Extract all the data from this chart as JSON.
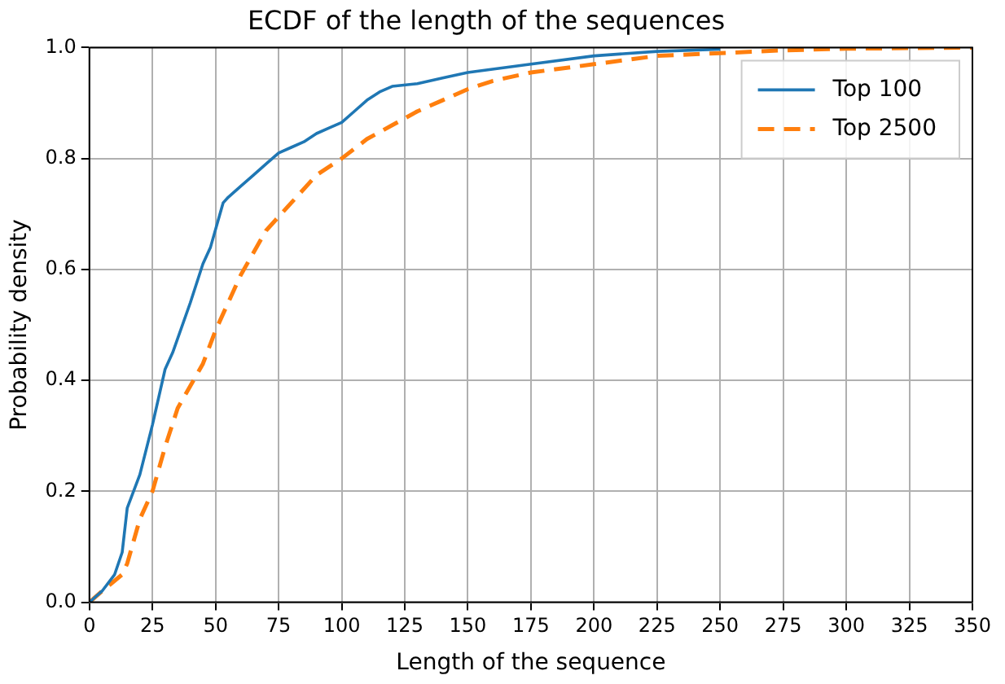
{
  "chart_data": {
    "type": "line",
    "title": "ECDF of the length of the sequences",
    "xlabel": "Length of the sequence",
    "ylabel": "Probability density",
    "series": [
      {
        "name": "Top 100",
        "color": "#1f77b4",
        "line_style": "solid",
        "x": [
          0,
          5,
          10,
          13,
          15,
          20,
          25,
          30,
          33,
          40,
          45,
          48,
          53,
          55,
          60,
          65,
          70,
          75,
          80,
          85,
          90,
          95,
          100,
          105,
          110,
          115,
          120,
          130,
          140,
          150,
          175,
          200,
          225,
          250
        ],
        "values": [
          0,
          0.02,
          0.05,
          0.09,
          0.17,
          0.23,
          0.32,
          0.42,
          0.45,
          0.54,
          0.61,
          0.64,
          0.72,
          0.73,
          0.75,
          0.77,
          0.79,
          0.81,
          0.82,
          0.83,
          0.845,
          0.855,
          0.865,
          0.885,
          0.905,
          0.92,
          0.93,
          0.935,
          0.945,
          0.955,
          0.97,
          0.985,
          0.993,
          0.997
        ]
      },
      {
        "name": "Top 2500",
        "color": "#ff7f0e",
        "line_style": "dashed",
        "x": [
          0,
          5,
          13,
          15,
          20,
          25,
          30,
          35,
          40,
          45,
          50,
          55,
          60,
          65,
          70,
          80,
          90,
          100,
          110,
          120,
          130,
          140,
          150,
          160,
          175,
          200,
          225,
          250,
          275,
          300,
          350
        ],
        "values": [
          0,
          0.02,
          0.05,
          0.07,
          0.15,
          0.2,
          0.28,
          0.35,
          0.39,
          0.43,
          0.49,
          0.54,
          0.59,
          0.63,
          0.67,
          0.72,
          0.77,
          0.8,
          0.835,
          0.86,
          0.885,
          0.905,
          0.925,
          0.94,
          0.955,
          0.97,
          0.985,
          0.99,
          0.995,
          0.998,
          1.0
        ]
      }
    ],
    "xlim": [
      0,
      350
    ],
    "xticks": [
      0,
      25,
      50,
      75,
      100,
      125,
      150,
      175,
      200,
      225,
      250,
      275,
      300,
      325,
      350
    ],
    "ylim": [
      0,
      1
    ],
    "yticks": [
      {
        "value": 0,
        "label": "0.0"
      },
      {
        "value": 0.2,
        "label": "0.2"
      },
      {
        "value": 0.4,
        "label": "0.4"
      },
      {
        "value": 0.6,
        "label": "0.6"
      },
      {
        "value": 0.8,
        "label": "0.8"
      },
      {
        "value": 1,
        "label": "1.0"
      }
    ],
    "grid": true,
    "legend": "top right",
    "marker": "none"
  }
}
